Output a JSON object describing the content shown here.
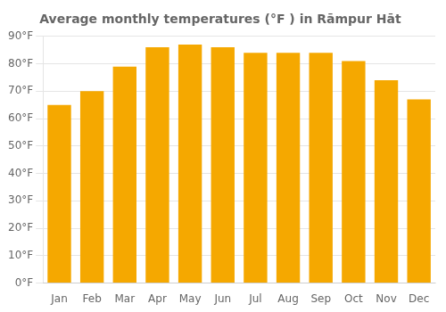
{
  "chart_data": {
    "type": "bar",
    "title": "Average monthly temperatures (°F ) in Rāmpur Hāt",
    "categories": [
      "Jan",
      "Feb",
      "Mar",
      "Apr",
      "May",
      "Jun",
      "Jul",
      "Aug",
      "Sep",
      "Oct",
      "Nov",
      "Dec"
    ],
    "values": [
      65,
      70,
      79,
      86,
      87,
      86,
      84,
      84,
      84,
      81,
      74,
      67
    ],
    "color": "#F5A800",
    "ylim": [
      0,
      90
    ],
    "yticks": [
      {
        "value": 0,
        "label": "0°F"
      },
      {
        "value": 10,
        "label": "10°F"
      },
      {
        "value": 20,
        "label": "20°F"
      },
      {
        "value": 30,
        "label": "30°F"
      },
      {
        "value": 40,
        "label": "40°F"
      },
      {
        "value": 50,
        "label": "50°F"
      },
      {
        "value": 60,
        "label": "60°F"
      },
      {
        "value": 70,
        "label": "70°F"
      },
      {
        "value": 80,
        "label": "80°F"
      },
      {
        "value": 90,
        "label": "90°F"
      }
    ],
    "grid": true
  }
}
